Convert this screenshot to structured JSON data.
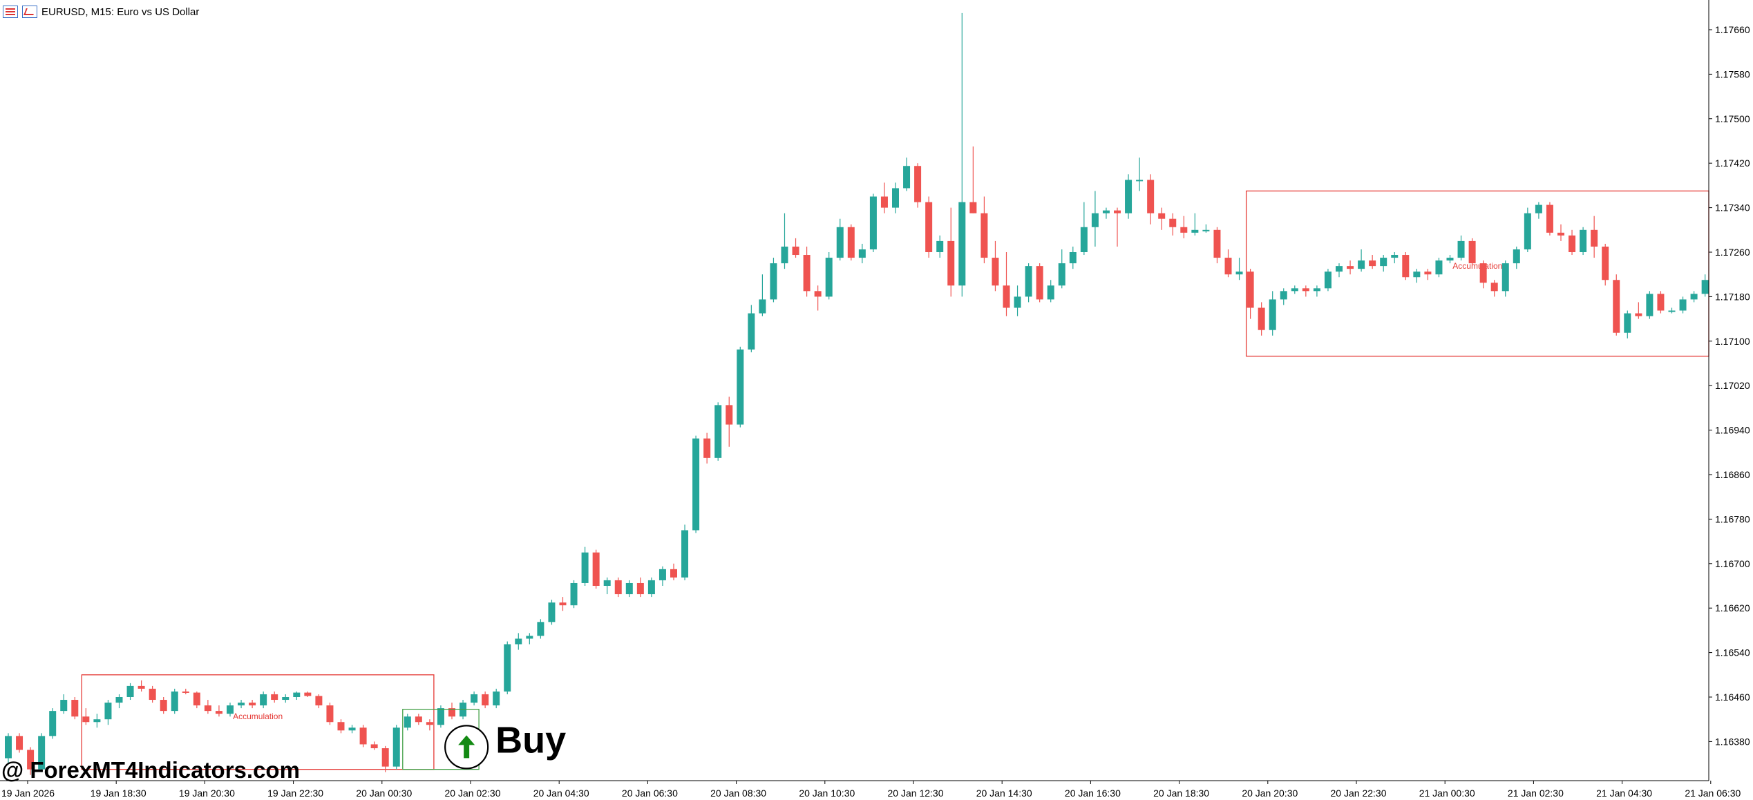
{
  "header": {
    "symbol_title": "EURUSD, M15:  Euro vs US Dollar",
    "list_icon": "symbol-list-icon",
    "chart_icon": "chart-window-icon"
  },
  "watermark": "@ ForexMT4Indicators.com",
  "colors": {
    "bull": "#26a69a",
    "bear": "#ef5350",
    "zone": "#e53935",
    "signal_box": "#43a047",
    "signal_arrow": "#138a13",
    "axis": "#000000"
  },
  "chart_data": {
    "type": "candlestick",
    "ylim": [
      1.163,
      1.1772
    ],
    "y_ticks": [
      "1.17660",
      "1.17580",
      "1.17500",
      "1.17420",
      "1.17340",
      "1.17260",
      "1.17180",
      "1.17100",
      "1.17020",
      "1.16940",
      "1.16860",
      "1.16780",
      "1.16700",
      "1.16620",
      "1.16540",
      "1.16460",
      "1.16380"
    ],
    "x_labels": [
      "19 Jan 2026",
      "19 Jan 18:30",
      "19 Jan 20:30",
      "19 Jan 22:30",
      "20 Jan 00:30",
      "20 Jan 02:30",
      "20 Jan 04:30",
      "20 Jan 06:30",
      "20 Jan 08:30",
      "20 Jan 10:30",
      "20 Jan 12:30",
      "20 Jan 14:30",
      "20 Jan 16:30",
      "20 Jan 18:30",
      "20 Jan 20:30",
      "20 Jan 22:30",
      "21 Jan 00:30",
      "21 Jan 02:30",
      "21 Jan 04:30",
      "21 Jan 06:30"
    ],
    "candles": [
      [
        1.1635,
        1.16395,
        1.1634,
        1.1639
      ],
      [
        1.1639,
        1.16395,
        1.1636,
        1.16365
      ],
      [
        1.16365,
        1.1637,
        1.1632,
        1.1633
      ],
      [
        1.1633,
        1.16395,
        1.16325,
        1.1639
      ],
      [
        1.1639,
        1.1644,
        1.16385,
        1.16435
      ],
      [
        1.16435,
        1.16465,
        1.1643,
        1.16455
      ],
      [
        1.16455,
        1.1646,
        1.1642,
        1.16425
      ],
      [
        1.16425,
        1.1644,
        1.1641,
        1.16415
      ],
      [
        1.16415,
        1.1643,
        1.16405,
        1.1642
      ],
      [
        1.1642,
        1.16455,
        1.1641,
        1.1645
      ],
      [
        1.1645,
        1.16465,
        1.1644,
        1.1646
      ],
      [
        1.1646,
        1.16485,
        1.16455,
        1.1648
      ],
      [
        1.1648,
        1.1649,
        1.1647,
        1.16475
      ],
      [
        1.16475,
        1.1648,
        1.1645,
        1.16455
      ],
      [
        1.16455,
        1.1646,
        1.1643,
        1.16435
      ],
      [
        1.16435,
        1.16475,
        1.1643,
        1.1647
      ],
      [
        1.1647,
        1.16475,
        1.16465,
        1.16468
      ],
      [
        1.16468,
        1.1647,
        1.1644,
        1.16445
      ],
      [
        1.16445,
        1.16455,
        1.1643,
        1.16435
      ],
      [
        1.16435,
        1.16445,
        1.16425,
        1.1643
      ],
      [
        1.1643,
        1.1645,
        1.16425,
        1.16445
      ],
      [
        1.16445,
        1.16455,
        1.1644,
        1.1645
      ],
      [
        1.1645,
        1.16455,
        1.1644,
        1.16445
      ],
      [
        1.16445,
        1.1647,
        1.1644,
        1.16465
      ],
      [
        1.16465,
        1.1647,
        1.1645,
        1.16455
      ],
      [
        1.16455,
        1.16465,
        1.1645,
        1.1646
      ],
      [
        1.1646,
        1.1647,
        1.16455,
        1.16468
      ],
      [
        1.16468,
        1.1647,
        1.1646,
        1.16462
      ],
      [
        1.16462,
        1.16465,
        1.1644,
        1.16445
      ],
      [
        1.16445,
        1.1645,
        1.1641,
        1.16415
      ],
      [
        1.16415,
        1.1642,
        1.16395,
        1.164
      ],
      [
        1.164,
        1.1641,
        1.16395,
        1.16405
      ],
      [
        1.16405,
        1.1641,
        1.1637,
        1.16375
      ],
      [
        1.16375,
        1.1638,
        1.16365,
        1.16368
      ],
      [
        1.16368,
        1.16372,
        1.16325,
        1.16335
      ],
      [
        1.16335,
        1.1641,
        1.1633,
        1.16405
      ],
      [
        1.16405,
        1.1643,
        1.164,
        1.16425
      ],
      [
        1.16425,
        1.1643,
        1.1641,
        1.16415
      ],
      [
        1.16415,
        1.1642,
        1.164,
        1.1641
      ],
      [
        1.1641,
        1.16445,
        1.16405,
        1.1644
      ],
      [
        1.1644,
        1.1645,
        1.1642,
        1.16425
      ],
      [
        1.16425,
        1.16455,
        1.1642,
        1.1645
      ],
      [
        1.1645,
        1.1647,
        1.16445,
        1.16465
      ],
      [
        1.16465,
        1.1647,
        1.1644,
        1.16445
      ],
      [
        1.16445,
        1.16475,
        1.1644,
        1.1647
      ],
      [
        1.1647,
        1.1656,
        1.16465,
        1.16555
      ],
      [
        1.16555,
        1.16575,
        1.16545,
        1.16565
      ],
      [
        1.16565,
        1.16575,
        1.16555,
        1.1657
      ],
      [
        1.1657,
        1.166,
        1.16565,
        1.16595
      ],
      [
        1.16595,
        1.16635,
        1.1659,
        1.1663
      ],
      [
        1.1663,
        1.1664,
        1.16615,
        1.16625
      ],
      [
        1.16625,
        1.1667,
        1.1662,
        1.16665
      ],
      [
        1.16665,
        1.1673,
        1.1666,
        1.1672
      ],
      [
        1.1672,
        1.16725,
        1.16655,
        1.1666
      ],
      [
        1.1666,
        1.16675,
        1.16645,
        1.1667
      ],
      [
        1.1667,
        1.16675,
        1.1664,
        1.16645
      ],
      [
        1.16645,
        1.1667,
        1.1664,
        1.16665
      ],
      [
        1.16665,
        1.16675,
        1.1664,
        1.16645
      ],
      [
        1.16645,
        1.16675,
        1.1664,
        1.1667
      ],
      [
        1.1667,
        1.16695,
        1.1666,
        1.1669
      ],
      [
        1.1669,
        1.167,
        1.1667,
        1.16675
      ],
      [
        1.16675,
        1.1677,
        1.1667,
        1.1676
      ],
      [
        1.1676,
        1.1693,
        1.16755,
        1.16925
      ],
      [
        1.16925,
        1.16935,
        1.1688,
        1.1689
      ],
      [
        1.1689,
        1.1699,
        1.16885,
        1.16985
      ],
      [
        1.16985,
        1.17,
        1.1691,
        1.1695
      ],
      [
        1.1695,
        1.1709,
        1.16945,
        1.17085
      ],
      [
        1.17085,
        1.17165,
        1.1708,
        1.1715
      ],
      [
        1.1715,
        1.1722,
        1.17145,
        1.17175
      ],
      [
        1.17175,
        1.1725,
        1.1717,
        1.1724
      ],
      [
        1.1724,
        1.1733,
        1.1723,
        1.1727
      ],
      [
        1.1727,
        1.17285,
        1.1725,
        1.17255
      ],
      [
        1.17255,
        1.1727,
        1.1718,
        1.1719
      ],
      [
        1.1719,
        1.172,
        1.17155,
        1.1718
      ],
      [
        1.1718,
        1.1726,
        1.17175,
        1.1725
      ],
      [
        1.1725,
        1.1732,
        1.17245,
        1.17305
      ],
      [
        1.17305,
        1.1731,
        1.17245,
        1.1725
      ],
      [
        1.1725,
        1.17275,
        1.1724,
        1.17265
      ],
      [
        1.17265,
        1.17365,
        1.1726,
        1.1736
      ],
      [
        1.1736,
        1.17385,
        1.1733,
        1.1734
      ],
      [
        1.1734,
        1.17385,
        1.1733,
        1.17375
      ],
      [
        1.17375,
        1.1743,
        1.1737,
        1.17415
      ],
      [
        1.17415,
        1.1742,
        1.1734,
        1.1735
      ],
      [
        1.1735,
        1.1736,
        1.1725,
        1.1726
      ],
      [
        1.1726,
        1.1729,
        1.1725,
        1.1728
      ],
      [
        1.1728,
        1.1734,
        1.1718,
        1.172
      ],
      [
        1.172,
        1.1769,
        1.1718,
        1.1735
      ],
      [
        1.1735,
        1.1745,
        1.1733,
        1.1733
      ],
      [
        1.1733,
        1.1736,
        1.1724,
        1.1725
      ],
      [
        1.1725,
        1.1728,
        1.1719,
        1.172
      ],
      [
        1.172,
        1.1726,
        1.17145,
        1.1716
      ],
      [
        1.1716,
        1.172,
        1.17145,
        1.1718
      ],
      [
        1.1718,
        1.1724,
        1.1717,
        1.17235
      ],
      [
        1.17235,
        1.1724,
        1.1717,
        1.17175
      ],
      [
        1.17175,
        1.1721,
        1.1717,
        1.172
      ],
      [
        1.172,
        1.17265,
        1.17195,
        1.1724
      ],
      [
        1.1724,
        1.1727,
        1.1723,
        1.1726
      ],
      [
        1.1726,
        1.1735,
        1.17255,
        1.17305
      ],
      [
        1.17305,
        1.1737,
        1.1727,
        1.1733
      ],
      [
        1.1733,
        1.1734,
        1.1732,
        1.17335
      ],
      [
        1.17335,
        1.1734,
        1.1727,
        1.1733
      ],
      [
        1.1733,
        1.174,
        1.1732,
        1.1739
      ],
      [
        1.1739,
        1.1743,
        1.1737,
        1.1739
      ],
      [
        1.1739,
        1.174,
        1.1731,
        1.1733
      ],
      [
        1.1733,
        1.1734,
        1.173,
        1.1732
      ],
      [
        1.1732,
        1.1733,
        1.1729,
        1.17305
      ],
      [
        1.17305,
        1.17325,
        1.17285,
        1.17295
      ],
      [
        1.17295,
        1.1733,
        1.1729,
        1.173
      ],
      [
        1.173,
        1.1731,
        1.17295,
        1.173
      ],
      [
        1.173,
        1.17305,
        1.1724,
        1.1725
      ],
      [
        1.1725,
        1.17265,
        1.17215,
        1.1722
      ],
      [
        1.1722,
        1.1725,
        1.1721,
        1.17225
      ],
      [
        1.17225,
        1.1723,
        1.1714,
        1.1716
      ],
      [
        1.1716,
        1.1717,
        1.1711,
        1.1712
      ],
      [
        1.1712,
        1.1719,
        1.1711,
        1.17175
      ],
      [
        1.17175,
        1.17195,
        1.17165,
        1.1719
      ],
      [
        1.1719,
        1.172,
        1.17185,
        1.17195
      ],
      [
        1.17195,
        1.172,
        1.1718,
        1.1719
      ],
      [
        1.1719,
        1.172,
        1.1718,
        1.17195
      ],
      [
        1.17195,
        1.1723,
        1.1719,
        1.17225
      ],
      [
        1.17225,
        1.1724,
        1.17215,
        1.17235
      ],
      [
        1.17235,
        1.17245,
        1.1722,
        1.1723
      ],
      [
        1.1723,
        1.17265,
        1.17225,
        1.17245
      ],
      [
        1.17245,
        1.17255,
        1.1723,
        1.17235
      ],
      [
        1.17235,
        1.17255,
        1.17225,
        1.1725
      ],
      [
        1.1725,
        1.1726,
        1.1724,
        1.17255
      ],
      [
        1.17255,
        1.1726,
        1.1721,
        1.17215
      ],
      [
        1.17215,
        1.1723,
        1.17205,
        1.17225
      ],
      [
        1.17225,
        1.1723,
        1.1721,
        1.1722
      ],
      [
        1.1722,
        1.1725,
        1.17215,
        1.17245
      ],
      [
        1.17245,
        1.17255,
        1.1724,
        1.1725
      ],
      [
        1.1725,
        1.1729,
        1.17245,
        1.1728
      ],
      [
        1.1728,
        1.17285,
        1.17235,
        1.1724
      ],
      [
        1.1724,
        1.17245,
        1.17195,
        1.17205
      ],
      [
        1.17205,
        1.1721,
        1.1718,
        1.1719
      ],
      [
        1.1719,
        1.17245,
        1.1718,
        1.1724
      ],
      [
        1.1724,
        1.1727,
        1.1723,
        1.17265
      ],
      [
        1.17265,
        1.1734,
        1.1726,
        1.1733
      ],
      [
        1.1733,
        1.1735,
        1.1732,
        1.17345
      ],
      [
        1.17345,
        1.1735,
        1.1729,
        1.17295
      ],
      [
        1.17295,
        1.1731,
        1.1728,
        1.1729
      ],
      [
        1.1729,
        1.173,
        1.17255,
        1.1726
      ],
      [
        1.1726,
        1.17305,
        1.17255,
        1.173
      ],
      [
        1.173,
        1.17325,
        1.1725,
        1.1727
      ],
      [
        1.1727,
        1.17275,
        1.172,
        1.1721
      ],
      [
        1.1721,
        1.1722,
        1.1711,
        1.17115
      ],
      [
        1.17115,
        1.17155,
        1.17105,
        1.1715
      ],
      [
        1.1715,
        1.1717,
        1.1714,
        1.17145
      ],
      [
        1.17145,
        1.1719,
        1.1714,
        1.17185
      ],
      [
        1.17185,
        1.1719,
        1.1715,
        1.17155
      ],
      [
        1.17155,
        1.1716,
        1.1715,
        1.17155
      ],
      [
        1.17155,
        1.1718,
        1.1715,
        1.17175
      ],
      [
        1.17175,
        1.1719,
        1.1717,
        1.17185
      ],
      [
        1.17185,
        1.1722,
        1.1718,
        1.1721
      ]
    ],
    "zones": [
      {
        "label": "Accumulation",
        "start": 7,
        "end": 38,
        "high": 1.165,
        "low": 1.1633
      },
      {
        "label": "Accumulation",
        "start": 112,
        "end": 150,
        "high": 1.1737,
        "low": 1.17073
      }
    ],
    "signal": {
      "label": "Buy",
      "start": 36,
      "end": 42,
      "high": 1.16438,
      "low": 1.1633,
      "arrow_index": 43,
      "arrow_price": 1.16385
    }
  }
}
